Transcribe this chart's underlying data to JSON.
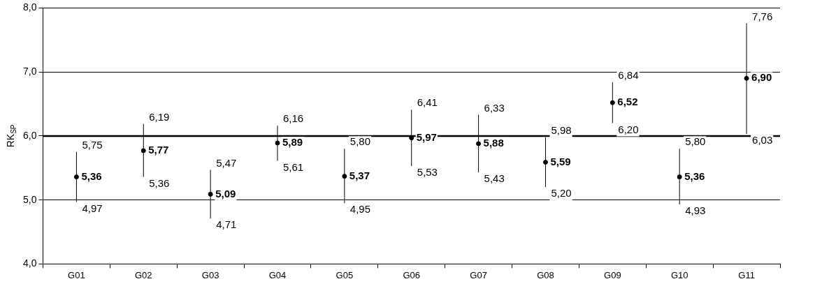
{
  "chart_data": {
    "type": "scatter",
    "ylabel": "RK$_{SP}$",
    "categories": [
      "G01",
      "G02",
      "G03",
      "G04",
      "G05",
      "G06",
      "G07",
      "G08",
      "G09",
      "G10",
      "G11"
    ],
    "series": [
      {
        "color": "#000000",
        "values": [
          5.36,
          5.77,
          5.09,
          5.89,
          5.37,
          5.97,
          5.88,
          5.59,
          6.52,
          5.36,
          6.9
        ],
        "errors": [
          [
            4.97,
            5.75
          ],
          [
            5.36,
            6.19
          ],
          [
            4.71,
            5.47
          ],
          [
            5.61,
            6.16
          ],
          [
            4.95,
            5.8
          ],
          [
            5.53,
            6.41
          ],
          [
            5.43,
            6.33
          ],
          [
            5.2,
            5.98
          ],
          [
            6.2,
            6.84
          ],
          [
            4.93,
            5.8
          ],
          [
            6.03,
            7.76
          ]
        ],
        "value_labels": [
          "5,36",
          "5,77",
          "5,09",
          "5,89",
          "5,37",
          "5,97",
          "5,88",
          "5,59",
          "6,52",
          "5,36",
          "6,90"
        ]
      }
    ],
    "annotations": [
      {
        "text": "5,75",
        "x": "G01",
        "y": 5.75
      },
      {
        "text": "4,97",
        "x": "G01",
        "y": 4.97
      },
      {
        "text": "6,19",
        "x": "G02",
        "y": 6.19
      },
      {
        "text": "5,36",
        "x": "G02",
        "y": 5.36
      },
      {
        "text": "5,47",
        "x": "G03",
        "y": 5.47
      },
      {
        "text": "4,71",
        "x": "G03",
        "y": 4.71
      },
      {
        "text": "6,16",
        "x": "G04",
        "y": 6.16
      },
      {
        "text": "5,61",
        "x": "G04",
        "y": 5.61
      },
      {
        "text": "5,80",
        "x": "G05",
        "y": 5.8
      },
      {
        "text": "4,95",
        "x": "G05",
        "y": 4.95
      },
      {
        "text": "6,41",
        "x": "G06",
        "y": 6.41
      },
      {
        "text": "5,53",
        "x": "G06",
        "y": 5.53
      },
      {
        "text": "6,33",
        "x": "G07",
        "y": 6.33
      },
      {
        "text": "5,43",
        "x": "G07",
        "y": 5.43
      },
      {
        "text": "5,98",
        "x": "G08",
        "y": 5.98
      },
      {
        "text": "5,20",
        "x": "G08",
        "y": 5.2
      },
      {
        "text": "6,84",
        "x": "G09",
        "y": 6.84
      },
      {
        "text": "6,20",
        "x": "G09",
        "y": 6.2
      },
      {
        "text": "5,80",
        "x": "G10",
        "y": 5.8
      },
      {
        "text": "4,93",
        "x": "G10",
        "y": 4.93
      },
      {
        "text": "7,76",
        "x": "G11",
        "y": 7.76
      },
      {
        "text": "6,03",
        "x": "G11",
        "y": 6.03
      }
    ],
    "ylim": [
      4,
      8
    ],
    "yticks": [
      {
        "value": 4,
        "label": "4,0"
      },
      {
        "value": 5,
        "label": "5,0"
      },
      {
        "value": 6,
        "label": "6,0"
      },
      {
        "value": 7,
        "label": "7,0"
      },
      {
        "value": 8,
        "label": "8,0"
      }
    ],
    "ref_lines": [
      {
        "axis": "y",
        "value": 6,
        "color": "#000000"
      }
    ],
    "grid": "y",
    "legend": false,
    "marker": "circle"
  }
}
